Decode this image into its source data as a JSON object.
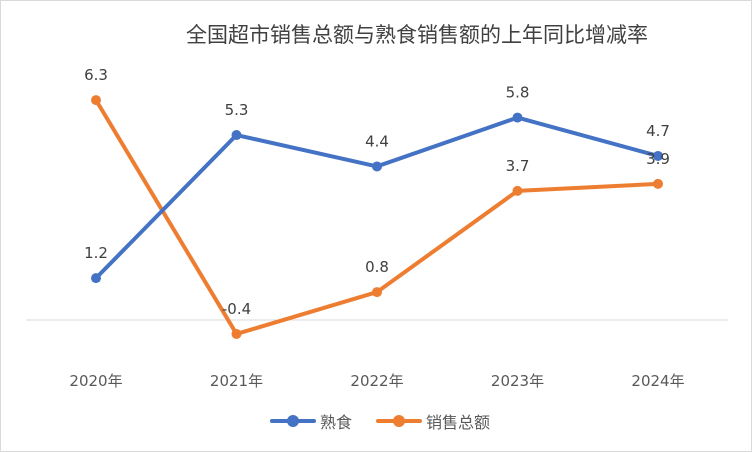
{
  "chart_data": {
    "type": "line",
    "title": "全国超市销售总额与熟食销售额的上年同比增减率",
    "categories": [
      "2020年",
      "2021年",
      "2022年",
      "2023年",
      "2024年"
    ],
    "series": [
      {
        "name": "熟食",
        "color": "#4472c4",
        "values": [
          1.2,
          5.3,
          4.4,
          5.8,
          4.7
        ]
      },
      {
        "name": "销售总额",
        "color": "#ed7d31",
        "values": [
          6.3,
          -0.4,
          0.8,
          3.7,
          3.9
        ]
      }
    ],
    "xlabel": "",
    "ylabel": "",
    "ylim": [
      -1,
      7.5
    ],
    "grid": false,
    "legend": "bottom"
  }
}
